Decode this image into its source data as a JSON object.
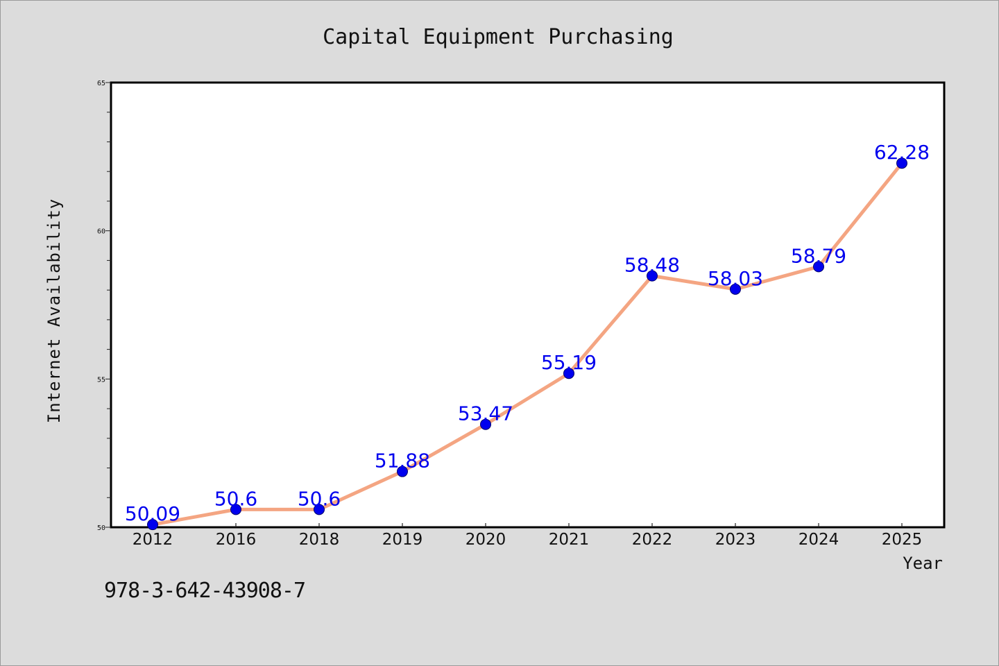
{
  "chart_data": {
    "type": "line",
    "title": "Capital Equipment Purchasing",
    "xlabel": "Year",
    "ylabel": "Internet Availability",
    "categories": [
      "2012",
      "2016",
      "2018",
      "2019",
      "2020",
      "2021",
      "2022",
      "2023",
      "2024",
      "2025"
    ],
    "series": [
      {
        "values": [
          50.09,
          50.6,
          50.6,
          51.88,
          53.47,
          55.19,
          58.48,
          58.03,
          58.79,
          62.28
        ],
        "labels": [
          "50.09",
          "50.6",
          "50.6",
          "51.88",
          "53.47",
          "55.19",
          "58.48",
          "58.03",
          "58.79",
          "62.28"
        ]
      }
    ],
    "ylim": [
      50,
      65
    ],
    "yticks": [
      "50",
      "55",
      "60",
      "65"
    ],
    "grid": false,
    "colors": {
      "line": "#f4a582",
      "marker": "#0000ee",
      "label": "#0000ee",
      "background": "#dcdcdc",
      "plot_background": "#ffffff"
    }
  },
  "footer": {
    "code": "978-3-642-43908-7"
  }
}
